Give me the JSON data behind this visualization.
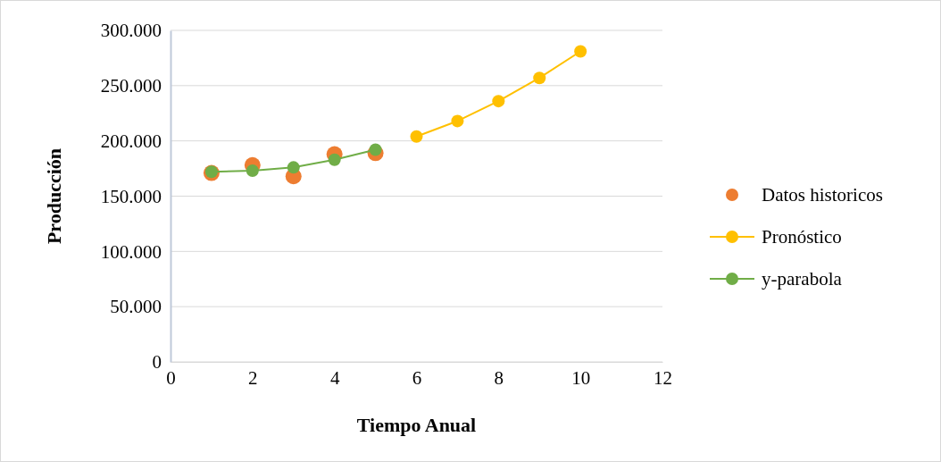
{
  "chart_data": {
    "type": "scatter",
    "xlabel": "Tiempo Anual",
    "ylabel": "Producción",
    "xlim": [
      0,
      12
    ],
    "xticks": [
      0,
      2,
      4,
      6,
      8,
      10,
      12
    ],
    "ylim": [
      0,
      300000
    ],
    "yticks": [
      {
        "value": 0,
        "label": "0"
      },
      {
        "value": 50000,
        "label": "50.000"
      },
      {
        "value": 100000,
        "label": "100.000"
      },
      {
        "value": 150000,
        "label": "150.000"
      },
      {
        "value": 200000,
        "label": "200.000"
      },
      {
        "value": 250000,
        "label": "250.000"
      },
      {
        "value": 300000,
        "label": "300.000"
      }
    ],
    "grid": "y",
    "legend": "right",
    "marker": "circle",
    "series": [
      {
        "name": "Datos historicos",
        "type": "scatter",
        "color": "#ed7d31",
        "x": [
          1,
          2,
          3,
          4,
          5
        ],
        "values": [
          171000,
          178000,
          168000,
          188000,
          189000
        ]
      },
      {
        "name": "Pronóstico",
        "type": "line",
        "color": "#ffc000",
        "x": [
          6,
          7,
          8,
          9,
          10
        ],
        "values": [
          204000,
          218000,
          236000,
          257000,
          281000
        ]
      },
      {
        "name": "y-parabola",
        "type": "line",
        "color": "#70ad47",
        "x": [
          1,
          2,
          3,
          4,
          5
        ],
        "values": [
          172000,
          173000,
          176000,
          183000,
          192000
        ]
      }
    ]
  }
}
